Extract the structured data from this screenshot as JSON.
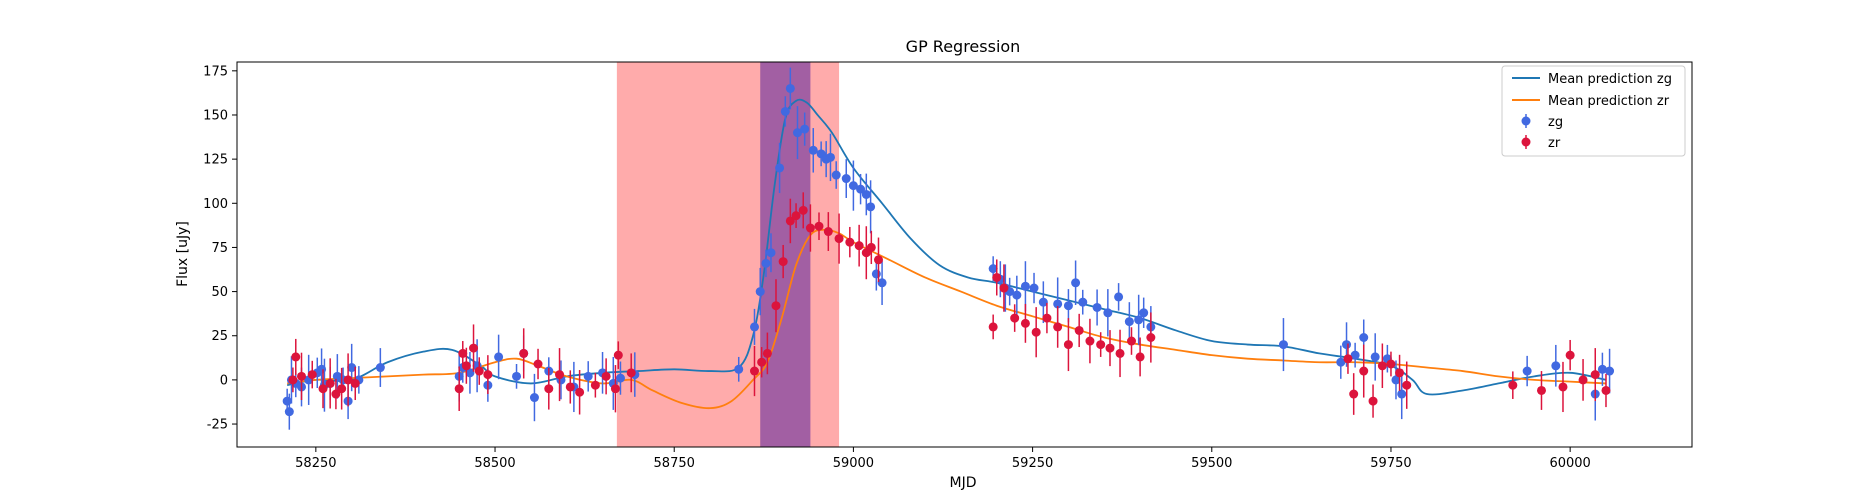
{
  "chart_data": {
    "type": "scatter",
    "title": "GP Regression",
    "xlabel": "MJD",
    "ylabel": "Flux [uJy]",
    "xlim": [
      58140,
      60170
    ],
    "ylim": [
      -38,
      180
    ],
    "xticks": [
      58250,
      58500,
      58750,
      59000,
      59250,
      59500,
      59750,
      60000
    ],
    "yticks": [
      -25,
      0,
      25,
      50,
      75,
      100,
      125,
      150,
      175
    ],
    "grid": false,
    "legend_position": "top-right",
    "colors": {
      "zg": "#4169e1",
      "zr": "#dc143c",
      "mean_zg": "#1f77b4",
      "mean_zr": "#ff7f0e",
      "band_light": "#ff6666",
      "band_dark": "#7b3fa0"
    },
    "shaded_regions": [
      {
        "x0": 58670,
        "x1": 58980,
        "color": "#ff6666",
        "alpha": 0.55
      },
      {
        "x0": 58870,
        "x1": 58940,
        "color": "#7b3fa0",
        "alpha": 0.7
      }
    ],
    "lines": [
      {
        "name": "Mean prediction zg",
        "color": "#1f77b4",
        "x": [
          58210,
          58250,
          58300,
          58350,
          58400,
          58440,
          58480,
          58500,
          58550,
          58600,
          58650,
          58700,
          58750,
          58800,
          58840,
          58860,
          58875,
          58890,
          58905,
          58920,
          58935,
          58950,
          58970,
          59000,
          59040,
          59080,
          59120,
          59160,
          59200,
          59250,
          59300,
          59350,
          59400,
          59450,
          59500,
          59550,
          59600,
          59650,
          59700,
          59750,
          59780,
          59800,
          59850,
          59900,
          59950,
          60000,
          60050
        ],
        "y": [
          -3,
          0,
          0,
          10,
          16,
          17,
          8,
          2,
          -2,
          2,
          4,
          5,
          6,
          5,
          7,
          25,
          60,
          110,
          148,
          158,
          157,
          150,
          140,
          120,
          100,
          80,
          65,
          58,
          55,
          50,
          45,
          40,
          35,
          28,
          22,
          20,
          19,
          15,
          12,
          8,
          0,
          -8,
          -6,
          -2,
          2,
          4,
          0
        ]
      },
      {
        "name": "Mean prediction zr",
        "color": "#ff7f0e",
        "x": [
          58210,
          58250,
          58300,
          58350,
          58400,
          58450,
          58500,
          58530,
          58560,
          58600,
          58650,
          58690,
          58720,
          58760,
          58800,
          58830,
          58860,
          58880,
          58900,
          58920,
          58940,
          58960,
          58980,
          59000,
          59050,
          59100,
          59150,
          59200,
          59250,
          59300,
          59350,
          59400,
          59450,
          59500,
          59550,
          59600,
          59650,
          59700,
          59750,
          59800,
          59850,
          59900,
          59950,
          60000,
          60050
        ],
        "y": [
          -2,
          0,
          1,
          2,
          3,
          4,
          10,
          12,
          8,
          2,
          -2,
          0,
          -6,
          -13,
          -16,
          -12,
          0,
          10,
          35,
          65,
          82,
          85,
          83,
          78,
          68,
          58,
          50,
          42,
          36,
          30,
          24,
          20,
          17,
          14,
          12,
          11,
          10,
          10,
          9,
          7,
          5,
          2,
          0,
          -1,
          -2
        ]
      }
    ],
    "series": [
      {
        "name": "zg",
        "color": "#4169e1",
        "x": [
          58210,
          58213,
          58216,
          58222,
          58230,
          58240,
          58252,
          58258,
          58262,
          58270,
          58280,
          58288,
          58295,
          58300,
          58310,
          58340,
          58450,
          58455,
          58465,
          58475,
          58490,
          58505,
          58530,
          58540,
          58555,
          58575,
          58592,
          58610,
          58630,
          58650,
          58665,
          58675,
          58695,
          58840,
          58862,
          58870,
          58878,
          58885,
          58897,
          58905,
          58912,
          58922,
          58932,
          58944,
          58955,
          58962,
          58968,
          58976,
          58990,
          59000,
          59010,
          59018,
          59024,
          59032,
          59040,
          59195,
          59205,
          59212,
          59218,
          59228,
          59240,
          59252,
          59265,
          59285,
          59300,
          59310,
          59320,
          59340,
          59355,
          59370,
          59385,
          59398,
          59405,
          59415,
          59600,
          59680,
          59688,
          59700,
          59712,
          59728,
          59745,
          59757,
          59765,
          59940,
          59980,
          60035,
          60045,
          60055
        ],
        "y": [
          -12,
          -18,
          0,
          -2,
          -4,
          0,
          4,
          6,
          -3,
          -2,
          2,
          0,
          -12,
          7,
          0,
          7,
          2,
          7,
          4,
          8,
          -3,
          13,
          2,
          15,
          -10,
          5,
          0,
          -4,
          2,
          4,
          -2,
          1,
          3,
          6,
          30,
          50,
          66,
          72,
          120,
          152,
          165,
          140,
          142,
          130,
          128,
          125,
          126,
          116,
          114,
          110,
          108,
          105,
          98,
          60,
          55,
          63,
          57,
          52,
          50,
          48,
          53,
          52,
          44,
          43,
          42,
          55,
          44,
          41,
          38,
          47,
          33,
          34,
          38,
          30,
          20,
          10,
          20,
          14,
          24,
          13,
          12,
          0,
          -8,
          5,
          8,
          -8,
          6,
          5
        ]
      },
      {
        "name": "zr",
        "color": "#dc143c",
        "x": [
          58218,
          58222,
          58230,
          58245,
          58260,
          58270,
          58278,
          58286,
          58295,
          58305,
          58450,
          58455,
          58460,
          58470,
          58478,
          58490,
          58540,
          58560,
          58575,
          58590,
          58605,
          58618,
          58640,
          58655,
          58668,
          58672,
          58690,
          58862,
          58872,
          58880,
          58892,
          58902,
          58912,
          58920,
          58930,
          58940,
          58952,
          58965,
          58980,
          58995,
          59008,
          59018,
          59025,
          59035,
          59195,
          59200,
          59210,
          59225,
          59240,
          59255,
          59270,
          59285,
          59300,
          59315,
          59330,
          59345,
          59358,
          59372,
          59388,
          59400,
          59415,
          59690,
          59698,
          59712,
          59725,
          59738,
          59750,
          59762,
          59772,
          59920,
          59960,
          59990,
          60000,
          60018,
          60035,
          60050
        ],
        "y": [
          0,
          13,
          2,
          3,
          -5,
          -2,
          -8,
          -5,
          0,
          -2,
          -5,
          15,
          8,
          18,
          5,
          3,
          15,
          9,
          -5,
          3,
          -4,
          -7,
          -3,
          2,
          -5,
          14,
          4,
          5,
          10,
          15,
          42,
          67,
          90,
          93,
          96,
          86,
          87,
          84,
          80,
          78,
          76,
          72,
          75,
          68,
          30,
          58,
          52,
          35,
          32,
          27,
          35,
          30,
          20,
          28,
          22,
          20,
          18,
          15,
          22,
          13,
          24,
          12,
          -8,
          5,
          -12,
          8,
          9,
          4,
          -3,
          -3,
          -6,
          -4,
          14,
          0,
          3,
          -6
        ]
      }
    ]
  }
}
